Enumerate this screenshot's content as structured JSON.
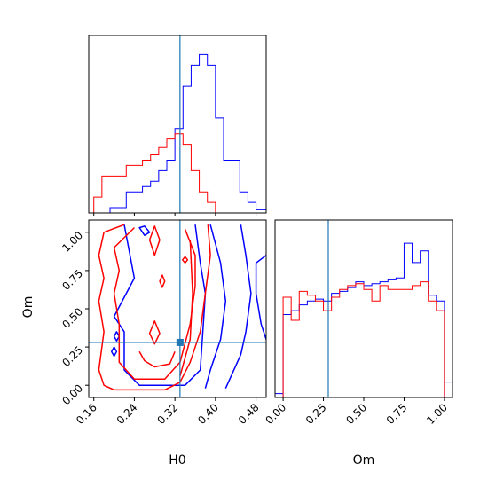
{
  "chart_data": {
    "type": "corner",
    "parameters": [
      "H0",
      "Om"
    ],
    "truth": {
      "H0": 0.33,
      "Om": 0.28
    },
    "colors": {
      "series_a": "#0000ff",
      "series_b": "#ff0000",
      "truth": "#1f77b4"
    },
    "series": [
      {
        "color_key": "series_a",
        "h0_hist": {
          "edges": [
            0.16,
            0.176,
            0.192,
            0.208,
            0.224,
            0.24,
            0.256,
            0.272,
            0.288,
            0.304,
            0.32,
            0.336,
            0.352,
            0.368,
            0.384,
            0.4,
            0.416,
            0.432,
            0.448,
            0.464,
            0.48,
            0.5
          ],
          "counts": [
            0,
            0,
            0.5,
            0.5,
            2,
            2,
            2.5,
            3,
            4,
            5,
            8,
            12,
            14,
            15,
            14,
            9,
            5,
            5,
            2,
            1,
            0.3
          ]
        },
        "om_hist": {
          "edges": [
            0.0,
            0.05,
            0.1,
            0.15,
            0.2,
            0.25,
            0.3,
            0.35,
            0.4,
            0.45,
            0.5,
            0.55,
            0.6,
            0.65,
            0.7,
            0.75,
            0.8,
            0.85,
            0.9,
            0.95,
            1.0
          ],
          "counts": [
            4.3,
            4.5,
            4.8,
            5.0,
            5.1,
            5.0,
            5.4,
            5.5,
            5.7,
            6.0,
            5.8,
            5.9,
            6.0,
            6.1,
            6.2,
            8.0,
            7.0,
            7.6,
            5.3,
            5.0
          ],
          "left_stub": 0.2
        },
        "contours": [
          {
            "points": [
              [
                0.36,
                1.05
              ],
              [
                0.37,
                0.8
              ],
              [
                0.38,
                0.6
              ],
              [
                0.375,
                0.35
              ],
              [
                0.37,
                0.1
              ],
              [
                0.34,
                0.0
              ],
              [
                0.25,
                0.0
              ],
              [
                0.22,
                0.1
              ],
              [
                0.22,
                0.35
              ],
              [
                0.2,
                0.45
              ],
              [
                0.24,
                0.7
              ],
              [
                0.22,
                1.05
              ]
            ],
            "closed": false
          },
          {
            "points": [
              [
                0.39,
                1.05
              ],
              [
                0.41,
                0.8
              ],
              [
                0.42,
                0.55
              ],
              [
                0.41,
                0.3
              ],
              [
                0.39,
                0.1
              ],
              [
                0.38,
                -0.02
              ]
            ],
            "closed": false
          },
          {
            "points": [
              [
                0.45,
                1.05
              ],
              [
                0.46,
                0.85
              ],
              [
                0.47,
                0.6
              ],
              [
                0.46,
                0.35
              ],
              [
                0.45,
                0.2
              ],
              [
                0.42,
                -0.02
              ]
            ],
            "closed": false
          },
          {
            "points": [
              [
                0.5,
                0.85
              ],
              [
                0.48,
                0.8
              ],
              [
                0.48,
                0.6
              ],
              [
                0.49,
                0.4
              ],
              [
                0.5,
                0.3
              ]
            ],
            "closed": false
          },
          {
            "points": [
              [
                0.25,
                1.03
              ],
              [
                0.26,
                0.98
              ],
              [
                0.27,
                1.0
              ],
              [
                0.26,
                1.04
              ]
            ],
            "closed": true
          },
          {
            "points": [
              [
                0.2,
                0.32
              ],
              [
                0.205,
                0.35
              ],
              [
                0.21,
                0.32
              ],
              [
                0.205,
                0.29
              ]
            ],
            "closed": true
          },
          {
            "points": [
              [
                0.195,
                0.22
              ],
              [
                0.2,
                0.25
              ],
              [
                0.205,
                0.22
              ],
              [
                0.2,
                0.19
              ]
            ],
            "closed": true
          }
        ]
      },
      {
        "color_key": "series_b",
        "h0_hist": {
          "edges": [
            0.16,
            0.176,
            0.192,
            0.208,
            0.224,
            0.24,
            0.256,
            0.272,
            0.288,
            0.304,
            0.32,
            0.336,
            0.352,
            0.368,
            0.384,
            0.4
          ],
          "counts": [
            1.5,
            3.5,
            3.5,
            3.5,
            4.5,
            4.5,
            5,
            5.5,
            6.2,
            7,
            7.5,
            6.5,
            4,
            2,
            1
          ]
        },
        "om_hist": {
          "edges": [
            0.0,
            0.05,
            0.1,
            0.15,
            0.2,
            0.25,
            0.3,
            0.35,
            0.4,
            0.45,
            0.5,
            0.55,
            0.6,
            0.65,
            0.7,
            0.75,
            0.8,
            0.85,
            0.9,
            0.95,
            1.0
          ],
          "counts": [
            5.2,
            4.0,
            5.5,
            5.3,
            5.0,
            4.5,
            5.2,
            5.6,
            5.8,
            5.9,
            5.6,
            5.0,
            5.8,
            5.6,
            5.6,
            5.6,
            5.8,
            6.0,
            5.0,
            4.5
          ]
        },
        "contours": [
          {
            "points": [
              [
                0.22,
                1.05
              ],
              [
                0.18,
                1.0
              ],
              [
                0.17,
                0.85
              ],
              [
                0.18,
                0.7
              ],
              [
                0.17,
                0.55
              ],
              [
                0.18,
                0.35
              ],
              [
                0.17,
                0.1
              ],
              [
                0.18,
                0.0
              ],
              [
                0.2,
                -0.03
              ],
              [
                0.3,
                -0.03
              ],
              [
                0.33,
                0.02
              ],
              [
                0.35,
                0.15
              ],
              [
                0.37,
                0.35
              ],
              [
                0.38,
                0.6
              ],
              [
                0.39,
                0.85
              ],
              [
                0.385,
                1.05
              ]
            ],
            "closed": false
          },
          {
            "points": [
              [
                0.24,
                1.03
              ],
              [
                0.2,
                0.9
              ],
              [
                0.21,
                0.75
              ],
              [
                0.2,
                0.6
              ],
              [
                0.21,
                0.4
              ],
              [
                0.21,
                0.15
              ],
              [
                0.24,
                0.04
              ],
              [
                0.3,
                0.04
              ],
              [
                0.33,
                0.15
              ],
              [
                0.35,
                0.4
              ],
              [
                0.36,
                0.65
              ],
              [
                0.36,
                0.85
              ],
              [
                0.34,
                1.02
              ]
            ],
            "closed": false
          },
          {
            "points": [
              [
                0.33,
                0.06
              ],
              [
                0.35,
                0.3
              ],
              [
                0.355,
                0.6
              ],
              [
                0.35,
                0.95
              ]
            ],
            "closed": false
          },
          {
            "points": [
              [
                0.28,
                1.04
              ],
              [
                0.27,
                0.95
              ],
              [
                0.28,
                0.85
              ],
              [
                0.29,
                0.95
              ]
            ],
            "closed": true
          },
          {
            "points": [
              [
                0.29,
                0.68
              ],
              [
                0.295,
                0.72
              ],
              [
                0.3,
                0.68
              ],
              [
                0.295,
                0.64
              ]
            ],
            "closed": true
          },
          {
            "points": [
              [
                0.335,
                0.82
              ],
              [
                0.34,
                0.8
              ],
              [
                0.345,
                0.82
              ],
              [
                0.34,
                0.84
              ]
            ],
            "closed": true
          },
          {
            "points": [
              [
                0.27,
                0.34
              ],
              [
                0.28,
                0.42
              ],
              [
                0.29,
                0.34
              ],
              [
                0.28,
                0.27
              ]
            ],
            "closed": true
          },
          {
            "points": [
              [
                0.25,
                0.22
              ],
              [
                0.26,
                0.16
              ],
              [
                0.28,
                0.12
              ],
              [
                0.31,
                0.14
              ],
              [
                0.32,
                0.22
              ]
            ],
            "closed": false
          }
        ]
      }
    ],
    "panels": {
      "h0_hist": {
        "xlim": [
          0.15,
          0.5
        ]
      },
      "om_hist": {
        "xlim": [
          -0.05,
          1.05
        ]
      },
      "scatter": {
        "xlim": [
          0.15,
          0.5
        ],
        "ylim": [
          -0.08,
          1.08
        ]
      }
    },
    "axes": {
      "h0": {
        "label": "H0",
        "ticks": [
          0.16,
          0.24,
          0.32,
          0.4,
          0.48
        ],
        "tick_labels": [
          "0.16",
          "0.24",
          "0.32",
          "0.40",
          "0.48"
        ]
      },
      "om": {
        "label": "Om",
        "ticks": [
          0.0,
          0.25,
          0.5,
          0.75,
          1.0
        ],
        "tick_labels": [
          "0.00",
          "0.25",
          "0.50",
          "0.75",
          "1.00"
        ]
      }
    }
  }
}
